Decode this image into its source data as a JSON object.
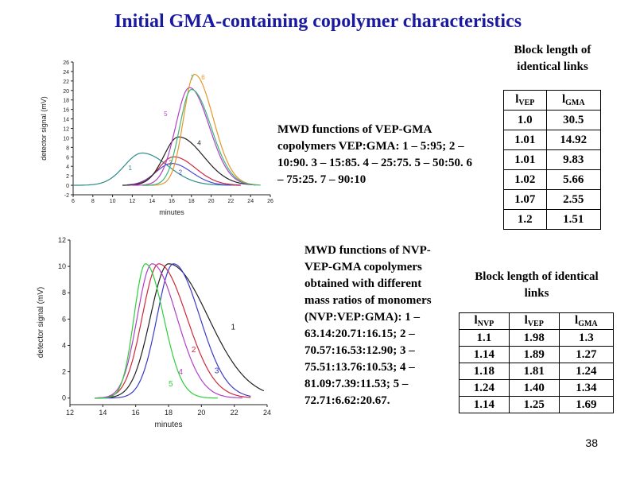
{
  "title": "Initial GMA-containing copolymer characteristics",
  "page_number": "38",
  "desc1": "MWD functions of VEP-GMA copolymers VEP:GMA: 1 – 5:95; 2 – 10:90. 3 – 15:85. 4 – 25:75. 5 – 50:50. 6 – 75:25. 7 – 90:10",
  "desc2": "MWD functions of NVP-VEP-GMA copolymers obtained with different mass ratios of monomers (NVP:VEP:GMA): 1 –63.14:20.71:16.15; 2 – 70.57:16.53:12.90; 3 – 75.51:13.76:10.53; 4 – 81.09:7.39:11.53; 5 – 72.71:6.62:20.67.",
  "table1": {
    "heading": "Block length of identical links",
    "col_main": [
      "l",
      "l"
    ],
    "col_sub": [
      "VEP",
      "GMA"
    ],
    "rows": [
      [
        "1.0",
        "30.5"
      ],
      [
        "1.01",
        "14.92"
      ],
      [
        "1.01",
        "9.83"
      ],
      [
        "1.02",
        "5.66"
      ],
      [
        "1.07",
        "2.55"
      ],
      [
        "1.2",
        "1.51"
      ]
    ]
  },
  "table2": {
    "heading": "Block length of identical links",
    "col_main": [
      "l",
      "l",
      "l"
    ],
    "col_sub": [
      "NVP",
      "VEP",
      "GMA"
    ],
    "rows": [
      [
        "1.1",
        "1.98",
        "1.3"
      ],
      [
        "1.14",
        "1.89",
        "1.27"
      ],
      [
        "1.18",
        "1.81",
        "1.24"
      ],
      [
        "1.24",
        "1.40",
        "1.34"
      ],
      [
        "1.14",
        "1.25",
        "1.69"
      ]
    ]
  },
  "chart_data": [
    {
      "type": "line",
      "xlabel": "minutes",
      "ylabel": "detector signal (mV)",
      "xlim": [
        6,
        26
      ],
      "ylim": [
        -2,
        26
      ],
      "xticks": [
        6,
        8,
        10,
        12,
        14,
        16,
        18,
        20,
        22,
        24,
        26
      ],
      "yticks": [
        -2,
        0,
        2,
        4,
        6,
        8,
        10,
        12,
        14,
        16,
        18,
        20,
        22,
        24,
        26
      ],
      "grid": false,
      "series": [
        {
          "name": "1",
          "color": "#2e8b8b",
          "label_at": [
            11.6,
            3.2
          ],
          "peak_x": 13.0,
          "peak_y": 6.8,
          "sigma_l": 1.8,
          "sigma_r": 2.6,
          "x_start": 6.0,
          "x_end": 22.0
        },
        {
          "name": "2",
          "color": "#4a4ad8",
          "label_at": [
            16.7,
            2.3
          ],
          "peak_x": 16.0,
          "peak_y": 4.6,
          "sigma_l": 1.6,
          "sigma_r": 2.0,
          "x_start": 11.5,
          "x_end": 23.0
        },
        {
          "name": "3",
          "color": "#cc2a3a",
          "label_at": [
            15.7,
            4.3
          ],
          "peak_x": 16.2,
          "peak_y": 6.0,
          "sigma_l": 1.5,
          "sigma_r": 2.2,
          "x_start": 11.5,
          "x_end": 23.0
        },
        {
          "name": "4",
          "color": "#202020",
          "label_at": [
            18.6,
            8.5
          ],
          "peak_x": 16.7,
          "peak_y": 10.2,
          "sigma_l": 1.5,
          "sigma_r": 2.5,
          "x_start": 11.0,
          "x_end": 24.5
        },
        {
          "name": "5",
          "color": "#b040c8",
          "label_at": [
            15.2,
            14.6
          ],
          "peak_x": 17.8,
          "peak_y": 20.6,
          "sigma_l": 1.4,
          "sigma_r": 2.0,
          "x_start": 12.0,
          "x_end": 24.5
        },
        {
          "name": "6",
          "color": "#e8952a",
          "label_at": [
            19.0,
            22.3
          ],
          "peak_x": 18.3,
          "peak_y": 23.4,
          "sigma_l": 1.1,
          "sigma_r": 1.9,
          "x_start": 13.0,
          "x_end": 25.0
        },
        {
          "name": "7",
          "color": "#3cb878",
          "label_at": [
            17.9,
            22.2
          ],
          "peak_x": 18.0,
          "peak_y": 20.2,
          "sigma_l": 1.2,
          "sigma_r": 2.0,
          "x_start": 13.0,
          "x_end": 25.0
        }
      ]
    },
    {
      "type": "line",
      "xlabel": "minutes",
      "ylabel": "detector signal (mV)",
      "xlim": [
        12,
        24
      ],
      "ylim": [
        -0.5,
        12
      ],
      "xticks": [
        12,
        14,
        16,
        18,
        20,
        22,
        24
      ],
      "yticks": [
        0,
        2,
        4,
        6,
        8,
        10,
        12
      ],
      "grid": false,
      "series": [
        {
          "name": "1",
          "color": "#202020",
          "label_at": [
            21.8,
            5.2
          ],
          "peak_x": 18.0,
          "peak_y": 10.2,
          "sigma_l": 1.1,
          "sigma_r": 2.4,
          "x_start": 13.5,
          "x_end": 23.8
        },
        {
          "name": "2",
          "color": "#cc2a3a",
          "label_at": [
            19.4,
            3.5
          ],
          "peak_x": 17.4,
          "peak_y": 10.2,
          "sigma_l": 1.0,
          "sigma_r": 1.7,
          "x_start": 13.5,
          "x_end": 23.0
        },
        {
          "name": "3",
          "color": "#3a3ac8",
          "label_at": [
            20.8,
            1.9
          ],
          "peak_x": 18.3,
          "peak_y": 10.2,
          "sigma_l": 1.0,
          "sigma_r": 1.6,
          "x_start": 13.5,
          "x_end": 23.0
        },
        {
          "name": "4",
          "color": "#b040c8",
          "label_at": [
            18.6,
            1.8
          ],
          "peak_x": 17.0,
          "peak_y": 10.2,
          "sigma_l": 0.9,
          "sigma_r": 1.5,
          "x_start": 13.5,
          "x_end": 22.5
        },
        {
          "name": "5",
          "color": "#2fce3a",
          "label_at": [
            18.0,
            0.9
          ],
          "peak_x": 16.6,
          "peak_y": 10.2,
          "sigma_l": 0.7,
          "sigma_r": 1.1,
          "x_start": 13.5,
          "x_end": 21.0
        }
      ]
    }
  ]
}
